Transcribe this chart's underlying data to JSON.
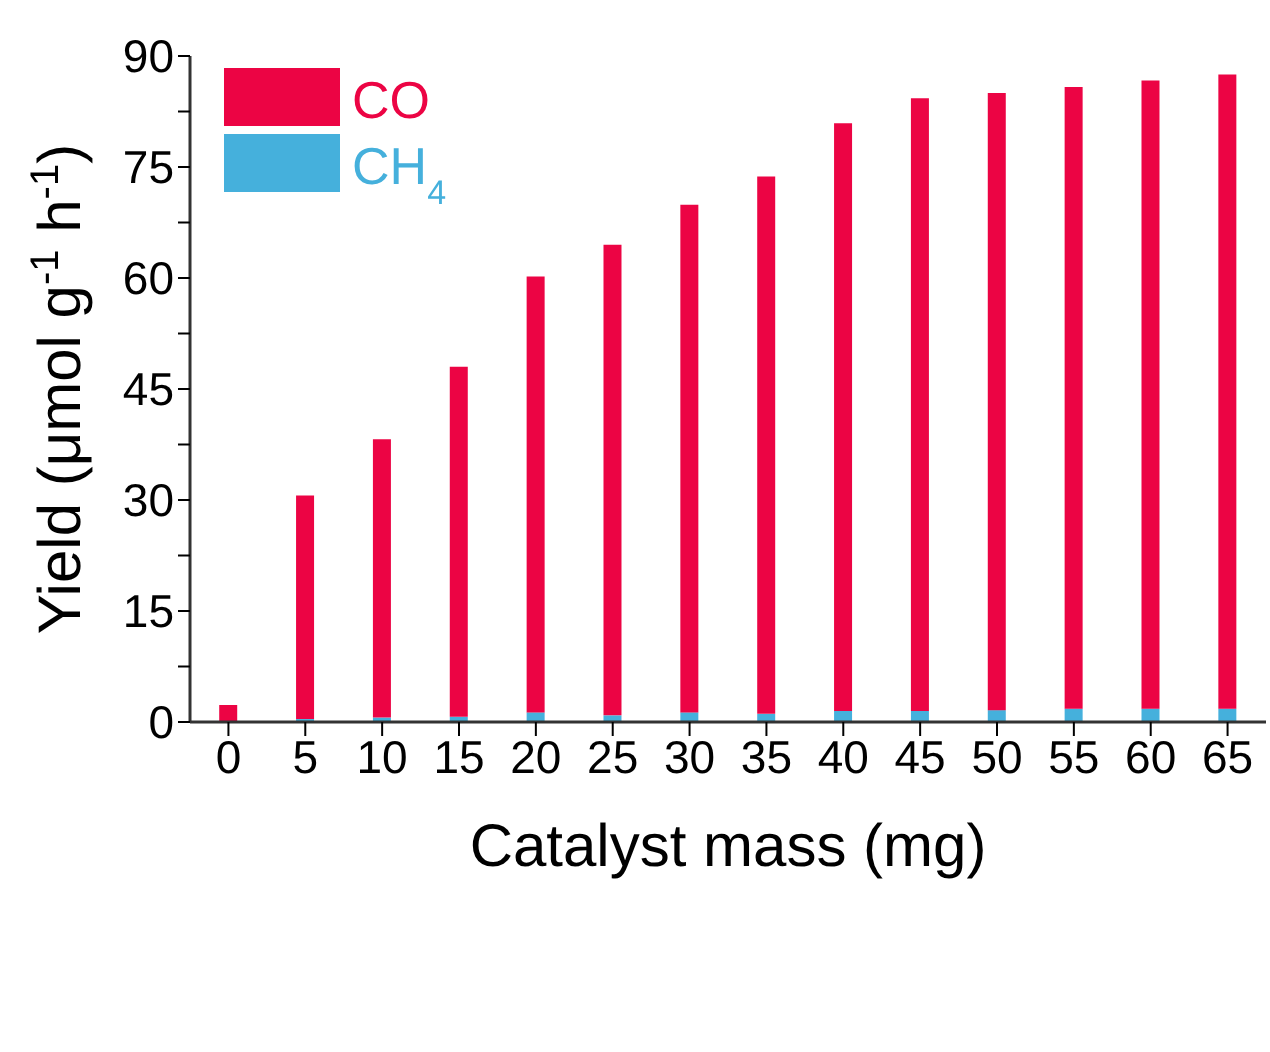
{
  "chart_data": {
    "type": "bar",
    "stacked": true,
    "xlabel": "Catalyst mass (mg)",
    "ylabel": "Yield (μmol g$^{-1}$ h$^{-1}$)",
    "categories": [
      "0",
      "5",
      "10",
      "15",
      "20",
      "25",
      "30",
      "35",
      "40",
      "45",
      "50",
      "55",
      "60",
      "65"
    ],
    "series": [
      {
        "name": "CH$_{4}$",
        "color": "#45b0dc",
        "values": [
          0,
          0.4,
          0.6,
          0.7,
          1.3,
          0.9,
          1.3,
          1.1,
          1.5,
          1.5,
          1.6,
          1.8,
          1.8,
          1.8
        ]
      },
      {
        "name": "CO",
        "color": "#ec0444",
        "values": [
          2.3,
          30.2,
          37.6,
          47.3,
          58.9,
          63.6,
          68.6,
          72.6,
          79.4,
          82.8,
          83.4,
          84.0,
          84.9,
          85.7
        ]
      }
    ],
    "ylim": [
      0,
      90
    ],
    "yticks": [
      0,
      {
        "value": 7.5,
        "label": null
      },
      15,
      {
        "value": 22.5,
        "label": null
      },
      30,
      {
        "value": 37.5,
        "label": null
      },
      45,
      {
        "value": 52.5,
        "label": null
      },
      60,
      {
        "value": 67.5,
        "label": null
      },
      75,
      {
        "value": 82.5,
        "label": null
      },
      90
    ],
    "legend": "top left",
    "grid": false
  }
}
